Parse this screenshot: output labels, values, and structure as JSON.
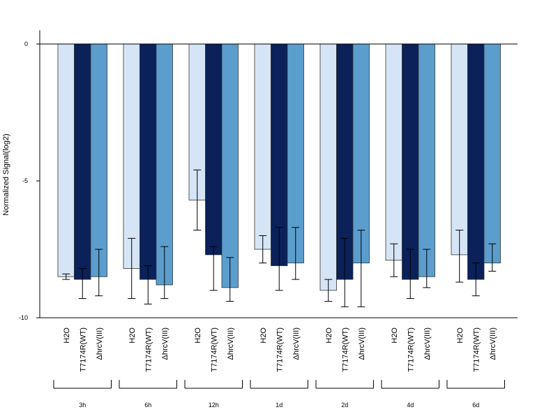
{
  "chart_data": {
    "type": "bar",
    "title": "",
    "xlabel": "",
    "ylabel": "Normalized Signal(log2)",
    "ylim": [
      -10,
      0.5
    ],
    "yticks": [
      0,
      -5,
      -10
    ],
    "grid": false,
    "conditions": [
      "H2O",
      "T7174R(WT)",
      "ΔhrcV(III)"
    ],
    "categories": [
      "3h",
      "6h",
      "12h",
      "1d",
      "2d",
      "4d",
      "6d"
    ],
    "colors": [
      "#d6e5f5",
      "#0a2159",
      "#5b9ece"
    ],
    "series": [
      {
        "name": "H2O",
        "values": [
          -8.5,
          -8.2,
          -5.7,
          -7.5,
          -9.0,
          -7.9,
          -7.7
        ],
        "err_low": [
          -8.6,
          -9.3,
          -6.8,
          -8.0,
          -9.4,
          -8.5,
          -8.7
        ],
        "err_high": [
          -8.4,
          -7.1,
          -4.6,
          -7.0,
          -8.6,
          -7.3,
          -6.8
        ]
      },
      {
        "name": "T7174R(WT)",
        "values": [
          -8.6,
          -8.6,
          -7.7,
          -8.1,
          -8.6,
          -8.6,
          -8.6
        ],
        "err_low": [
          -9.3,
          -9.5,
          -9.0,
          -9.0,
          -9.6,
          -9.3,
          -9.2
        ],
        "err_high": [
          -8.2,
          -8.1,
          -7.4,
          -6.7,
          -7.1,
          -7.5,
          -8.0
        ]
      },
      {
        "name": "ΔhrcV(III)",
        "values": [
          -8.5,
          -8.8,
          -8.9,
          -8.0,
          -8.0,
          -8.5,
          -8.0
        ],
        "err_low": [
          -9.2,
          -9.3,
          -9.4,
          -8.6,
          -9.6,
          -8.9,
          -8.3
        ],
        "err_high": [
          -7.5,
          -7.4,
          -7.8,
          -6.7,
          -6.8,
          -7.5,
          -7.3
        ]
      }
    ]
  }
}
